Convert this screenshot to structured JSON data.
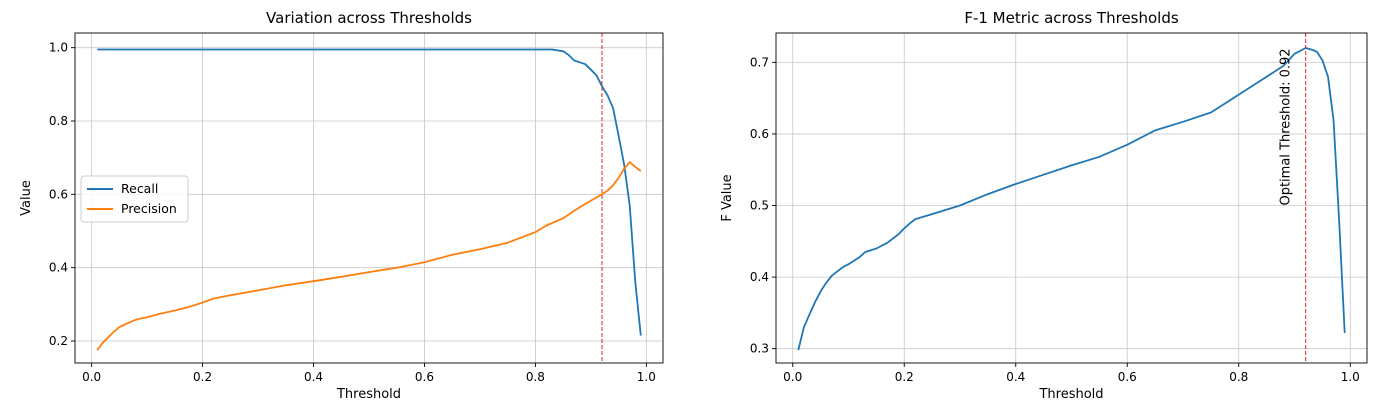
{
  "chart_data": [
    {
      "type": "line",
      "title": "Variation across Thresholds",
      "xlabel": "Threshold",
      "ylabel": "Value",
      "xlim": [
        -0.03,
        1.03
      ],
      "ylim": [
        0.14,
        1.04
      ],
      "xticks": [
        0.0,
        0.2,
        0.4,
        0.6,
        0.8,
        1.0
      ],
      "xtick_labels": [
        "0.0",
        "0.2",
        "0.4",
        "0.6",
        "0.8",
        "1.0"
      ],
      "yticks": [
        0.2,
        0.4,
        0.6,
        0.8,
        1.0
      ],
      "ytick_labels": [
        "0.2",
        "0.4",
        "0.6",
        "0.8",
        "1.0"
      ],
      "grid": true,
      "legend": "center-left",
      "vline": {
        "x": 0.92,
        "color": "#d62728"
      },
      "series": [
        {
          "name": "Recall",
          "color": "#1f77b4",
          "x": [
            0.01,
            0.1,
            0.2,
            0.3,
            0.4,
            0.5,
            0.6,
            0.7,
            0.8,
            0.83,
            0.85,
            0.86,
            0.87,
            0.88,
            0.89,
            0.9,
            0.91,
            0.92,
            0.93,
            0.94,
            0.95,
            0.96,
            0.97,
            0.98,
            0.99
          ],
          "y": [
            0.995,
            0.995,
            0.995,
            0.995,
            0.995,
            0.995,
            0.995,
            0.995,
            0.995,
            0.995,
            0.99,
            0.98,
            0.965,
            0.96,
            0.955,
            0.94,
            0.925,
            0.895,
            0.87,
            0.835,
            0.76,
            0.68,
            0.57,
            0.36,
            0.215
          ]
        },
        {
          "name": "Precision",
          "color": "#ff7f0e",
          "x": [
            0.01,
            0.02,
            0.03,
            0.04,
            0.05,
            0.06,
            0.07,
            0.08,
            0.09,
            0.1,
            0.12,
            0.14,
            0.16,
            0.18,
            0.2,
            0.22,
            0.25,
            0.3,
            0.35,
            0.4,
            0.45,
            0.5,
            0.55,
            0.6,
            0.65,
            0.7,
            0.75,
            0.8,
            0.82,
            0.85,
            0.87,
            0.88,
            0.9,
            0.92,
            0.93,
            0.94,
            0.95,
            0.96,
            0.97,
            0.98,
            0.99
          ],
          "y": [
            0.175,
            0.195,
            0.21,
            0.225,
            0.238,
            0.245,
            0.252,
            0.258,
            0.262,
            0.265,
            0.273,
            0.28,
            0.287,
            0.295,
            0.305,
            0.316,
            0.325,
            0.338,
            0.352,
            0.363,
            0.375,
            0.388,
            0.4,
            0.415,
            0.435,
            0.45,
            0.468,
            0.497,
            0.515,
            0.535,
            0.555,
            0.565,
            0.583,
            0.6,
            0.61,
            0.625,
            0.645,
            0.67,
            0.688,
            0.675,
            0.663
          ]
        }
      ]
    },
    {
      "type": "line",
      "title": "F-1 Metric across Thresholds",
      "xlabel": "Threshold",
      "ylabel": "F Value",
      "xlim": [
        -0.03,
        1.03
      ],
      "ylim": [
        0.28,
        0.741
      ],
      "xticks": [
        0.0,
        0.2,
        0.4,
        0.6,
        0.8,
        1.0
      ],
      "xtick_labels": [
        "0.0",
        "0.2",
        "0.4",
        "0.6",
        "0.8",
        "1.0"
      ],
      "yticks": [
        0.3,
        0.4,
        0.5,
        0.6,
        0.7
      ],
      "ytick_labels": [
        "0.3",
        "0.4",
        "0.5",
        "0.6",
        "0.7"
      ],
      "grid": true,
      "vline": {
        "x": 0.92,
        "color": "#d62728"
      },
      "annotation": "Optimal Threshold: 0.92",
      "series": [
        {
          "color": "#1f77b4",
          "x": [
            0.01,
            0.02,
            0.03,
            0.04,
            0.05,
            0.06,
            0.07,
            0.08,
            0.09,
            0.1,
            0.11,
            0.12,
            0.13,
            0.15,
            0.17,
            0.19,
            0.2,
            0.21,
            0.22,
            0.25,
            0.3,
            0.35,
            0.4,
            0.45,
            0.5,
            0.55,
            0.6,
            0.65,
            0.7,
            0.75,
            0.8,
            0.85,
            0.88,
            0.9,
            0.92,
            0.93,
            0.94,
            0.95,
            0.96,
            0.97,
            0.98,
            0.99
          ],
          "y": [
            0.298,
            0.33,
            0.348,
            0.365,
            0.38,
            0.392,
            0.402,
            0.408,
            0.414,
            0.418,
            0.423,
            0.428,
            0.435,
            0.44,
            0.448,
            0.46,
            0.468,
            0.475,
            0.481,
            0.488,
            0.5,
            0.516,
            0.53,
            0.543,
            0.556,
            0.568,
            0.585,
            0.605,
            0.617,
            0.63,
            0.655,
            0.68,
            0.695,
            0.712,
            0.72,
            0.718,
            0.715,
            0.703,
            0.68,
            0.62,
            0.48,
            0.322
          ]
        }
      ]
    }
  ]
}
